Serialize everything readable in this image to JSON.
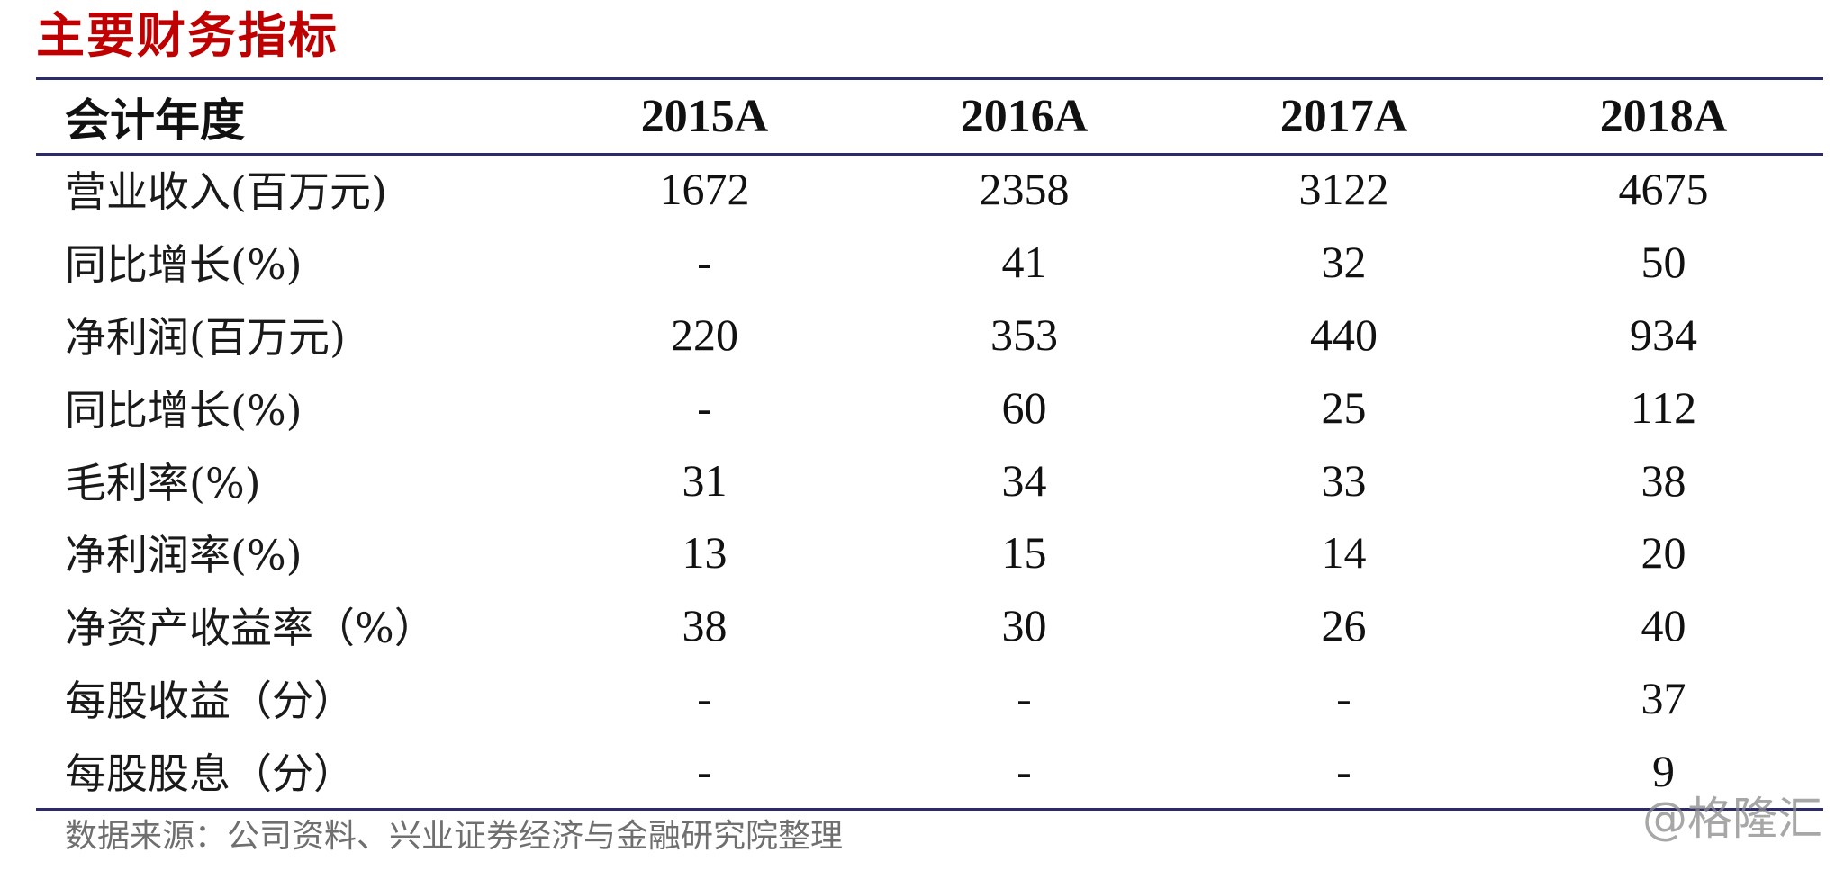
{
  "title": "主要财务指标",
  "table": {
    "header_label": "会计年度",
    "years": [
      "2015A",
      "2016A",
      "2017A",
      "2018A"
    ],
    "rows": [
      {
        "label": "营业收入(百万元)",
        "values": [
          "1672",
          "2358",
          "3122",
          "4675"
        ]
      },
      {
        "label": "同比增长(%)",
        "values": [
          "-",
          "41",
          "32",
          "50"
        ]
      },
      {
        "label": "净利润(百万元)",
        "values": [
          "220",
          "353",
          "440",
          "934"
        ]
      },
      {
        "label": "同比增长(%)",
        "values": [
          "-",
          "60",
          "25",
          "112"
        ]
      },
      {
        "label": "毛利率(%)",
        "values": [
          "31",
          "34",
          "33",
          "38"
        ]
      },
      {
        "label": "净利润率(%)",
        "values": [
          "13",
          "15",
          "14",
          "20"
        ]
      },
      {
        "label": "净资产收益率（%）",
        "values": [
          "38",
          "30",
          "26",
          "40"
        ]
      },
      {
        "label": "每股收益（分）",
        "values": [
          "-",
          "-",
          "-",
          "37"
        ]
      },
      {
        "label": "每股股息（分）",
        "values": [
          "-",
          "-",
          "-",
          "9"
        ]
      }
    ]
  },
  "source": "数据来源：公司资料、兴业证券经济与金融研究院整理",
  "watermark": "@格隆汇",
  "colors": {
    "title": "#c00000",
    "rule": "#2b2b6b",
    "source_text": "#6f6f6f"
  }
}
